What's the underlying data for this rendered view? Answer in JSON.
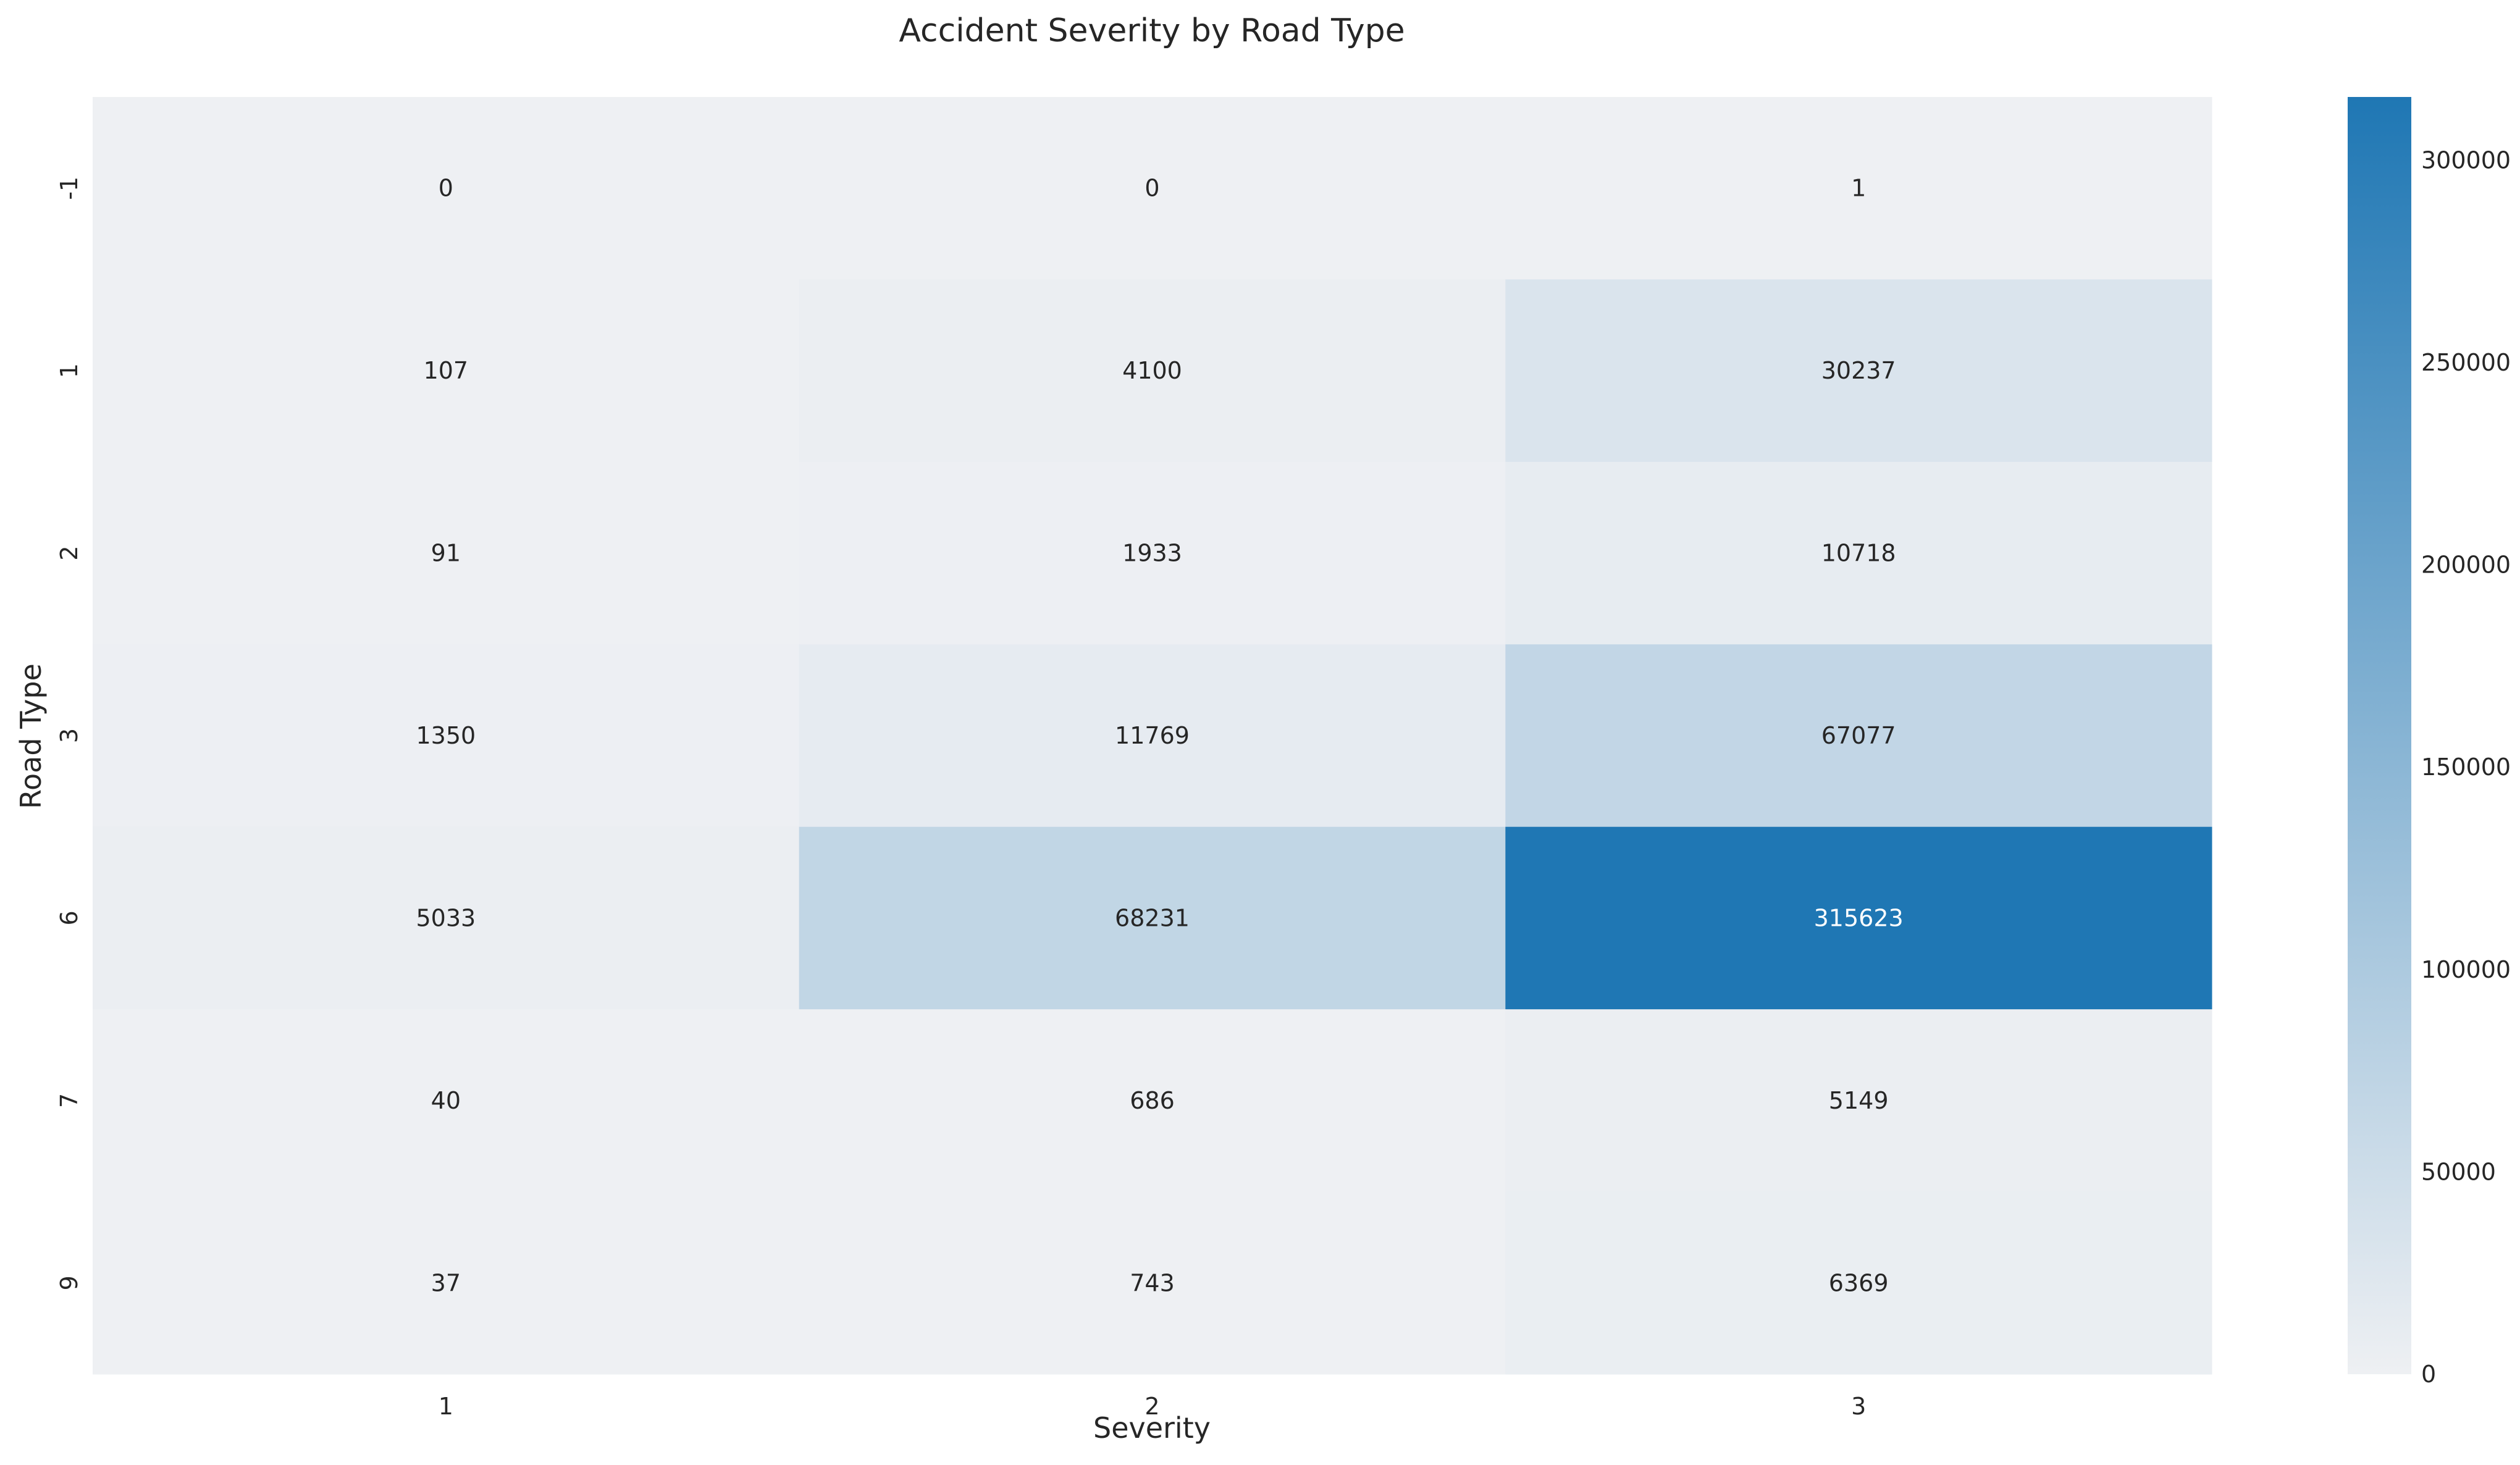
{
  "chart_data": {
    "type": "heatmap",
    "title": "Accident Severity by Road Type",
    "xlabel": "Severity",
    "ylabel": "Road Type",
    "x_categories": [
      "1",
      "2",
      "3"
    ],
    "y_categories": [
      "-1",
      "1",
      "2",
      "3",
      "6",
      "7",
      "9"
    ],
    "values": [
      [
        0,
        0,
        1
      ],
      [
        107,
        4100,
        30237
      ],
      [
        91,
        1933,
        10718
      ],
      [
        1350,
        11769,
        67077
      ],
      [
        5033,
        68231,
        315623
      ],
      [
        40,
        686,
        5149
      ],
      [
        37,
        743,
        6369
      ]
    ],
    "value_range": [
      0,
      315623
    ],
    "colorbar": {
      "ticks": [
        0,
        50000,
        100000,
        150000,
        200000,
        250000,
        300000
      ],
      "tick_labels": [
        "0",
        "50000",
        "100000",
        "150000",
        "200000",
        "250000",
        "300000"
      ]
    },
    "colormap": {
      "low": "#eef0f3",
      "high": "#1f77b4"
    },
    "annotation_colors": {
      "dark": "#262626",
      "light": "#ffffff"
    },
    "grid": false,
    "legend": "colorbar-right"
  }
}
